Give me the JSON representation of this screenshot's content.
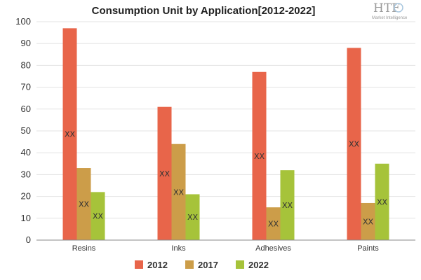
{
  "chart_data": {
    "type": "bar",
    "title": "Consumption Unit by  Application[2012-2022]",
    "categories": [
      "Resins",
      "Inks",
      "Adhesives",
      "Paints"
    ],
    "series": [
      {
        "name": "2012",
        "color": "#e8654a",
        "values": [
          97,
          61,
          77,
          88
        ],
        "labels": [
          "XX",
          "XX",
          "XX",
          "XX"
        ]
      },
      {
        "name": "2017",
        "color": "#cc9d49",
        "values": [
          33,
          44,
          15,
          17
        ],
        "labels": [
          "XX",
          "XX",
          "XX",
          "XX"
        ]
      },
      {
        "name": "2022",
        "color": "#a6c33a",
        "values": [
          22,
          21,
          32,
          35
        ],
        "labels": [
          "XX",
          "XX",
          "XX",
          "XX"
        ]
      }
    ],
    "ylim": [
      0,
      100
    ],
    "yticks": [
      0,
      10,
      20,
      30,
      40,
      50,
      60,
      70,
      80,
      90,
      100
    ],
    "grid": true,
    "legend": "bottom"
  },
  "logo": {
    "text": "HTF",
    "subtext": "Market Intelligence"
  }
}
